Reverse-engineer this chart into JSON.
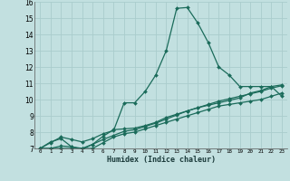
{
  "xlabel": "Humidex (Indice chaleur)",
  "bg_color": "#c2e0e0",
  "grid_color": "#aacccc",
  "line_color": "#1a6b5a",
  "xlim": [
    -0.5,
    23.5
  ],
  "ylim": [
    7,
    16
  ],
  "xticks": [
    0,
    1,
    2,
    3,
    4,
    5,
    6,
    7,
    8,
    9,
    10,
    11,
    12,
    13,
    14,
    15,
    16,
    17,
    18,
    19,
    20,
    21,
    22,
    23
  ],
  "yticks": [
    7,
    8,
    9,
    10,
    11,
    12,
    13,
    14,
    15,
    16
  ],
  "series": [
    {
      "x": [
        0,
        1,
        2,
        3,
        4,
        5,
        6,
        7,
        8,
        9,
        10,
        11,
        12,
        13,
        14,
        15,
        16,
        17,
        18,
        19,
        20,
        21,
        22,
        23
      ],
      "y": [
        7.0,
        7.35,
        7.7,
        7.55,
        7.4,
        7.6,
        7.9,
        8.1,
        9.8,
        9.8,
        10.5,
        11.5,
        13.0,
        15.6,
        15.65,
        14.7,
        13.5,
        12.0,
        11.5,
        10.8,
        10.8,
        10.8,
        10.8,
        10.2
      ]
    },
    {
      "x": [
        0,
        1,
        2,
        3,
        4,
        5,
        6,
        7,
        8,
        9,
        10,
        11,
        12,
        13,
        14,
        15,
        16,
        17,
        18,
        19,
        20,
        21,
        22,
        23
      ],
      "y": [
        7.0,
        7.0,
        7.0,
        7.0,
        7.0,
        7.0,
        7.35,
        7.7,
        7.9,
        8.0,
        8.2,
        8.4,
        8.6,
        8.8,
        9.0,
        9.2,
        9.4,
        9.6,
        9.7,
        9.8,
        9.9,
        10.0,
        10.2,
        10.4
      ]
    },
    {
      "x": [
        0,
        1,
        2,
        3,
        4,
        5,
        6,
        7,
        8,
        9,
        10,
        11,
        12,
        13,
        14,
        15,
        16,
        17,
        18,
        19,
        20,
        21,
        22,
        23
      ],
      "y": [
        7.0,
        7.0,
        7.15,
        7.1,
        7.0,
        7.25,
        7.55,
        7.8,
        8.05,
        8.15,
        8.35,
        8.55,
        8.8,
        9.05,
        9.3,
        9.5,
        9.7,
        9.9,
        10.05,
        10.2,
        10.35,
        10.5,
        10.7,
        10.85
      ]
    },
    {
      "x": [
        0,
        1,
        2,
        3,
        4,
        5,
        6,
        7,
        8,
        9,
        10,
        11,
        12,
        13,
        14,
        15,
        16,
        17,
        18,
        19,
        20,
        21,
        22,
        23
      ],
      "y": [
        7.0,
        7.4,
        7.6,
        7.1,
        6.95,
        7.25,
        7.75,
        8.15,
        8.2,
        8.25,
        8.4,
        8.6,
        8.9,
        9.1,
        9.3,
        9.5,
        9.65,
        9.8,
        9.95,
        10.1,
        10.4,
        10.55,
        10.8,
        10.9
      ]
    }
  ]
}
